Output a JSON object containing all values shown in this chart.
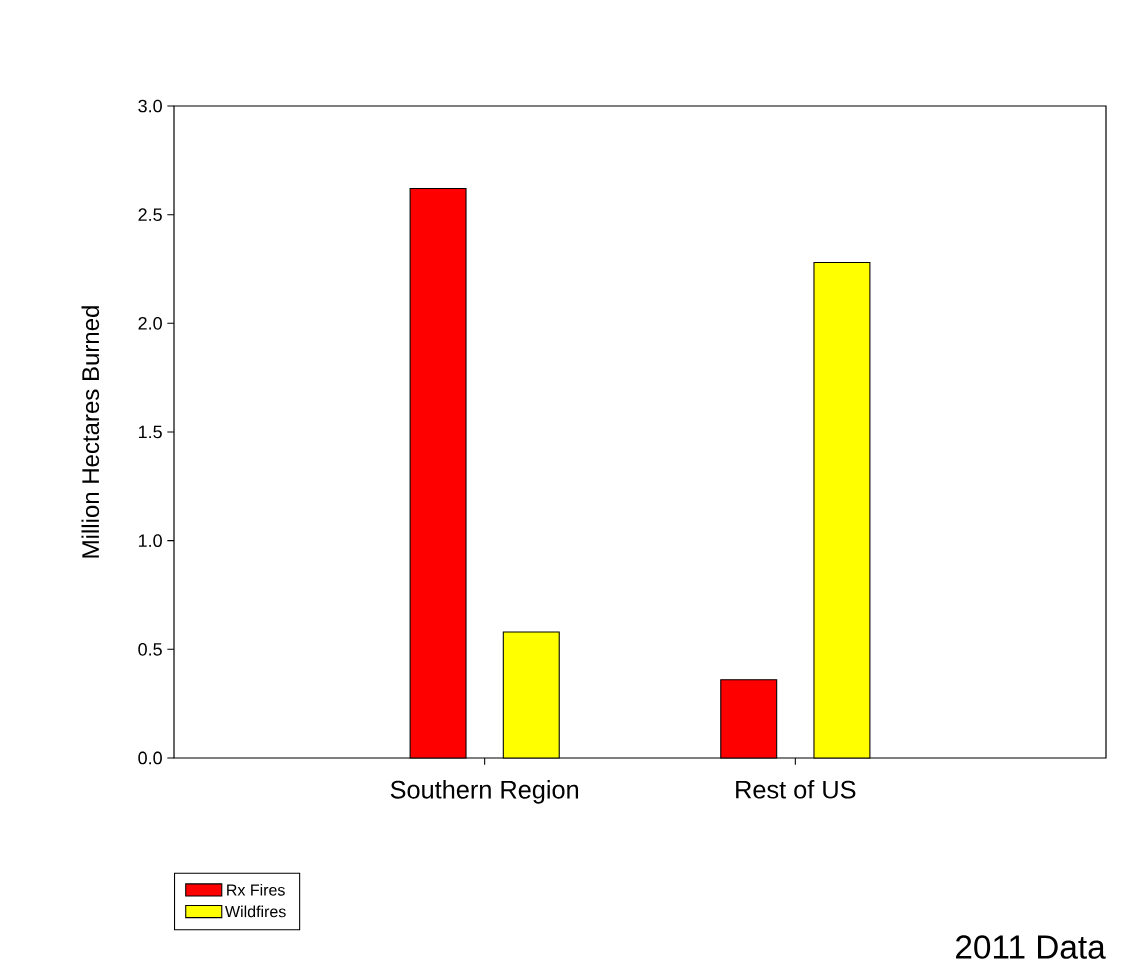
{
  "chart_data": {
    "type": "bar",
    "ylabel": "Million Hectares Burned",
    "categories": [
      "Southern Region",
      "Rest of US"
    ],
    "series": [
      {
        "name": "Rx Fires",
        "color": "#ff0000",
        "values": [
          2.62,
          0.36
        ]
      },
      {
        "name": "Wildfires",
        "color": "#ffff00",
        "values": [
          0.58,
          2.28
        ]
      }
    ],
    "ylim": [
      0,
      3
    ],
    "yticks": [
      {
        "value": 0,
        "label": "0.0"
      },
      0.5,
      {
        "value": 1,
        "label": "1.0"
      },
      1.5,
      {
        "value": 2,
        "label": "2.0"
      },
      2.5,
      {
        "value": 3,
        "label": "3.0"
      }
    ],
    "legend": "bottom left",
    "annotations": [
      "2011 Data"
    ]
  }
}
